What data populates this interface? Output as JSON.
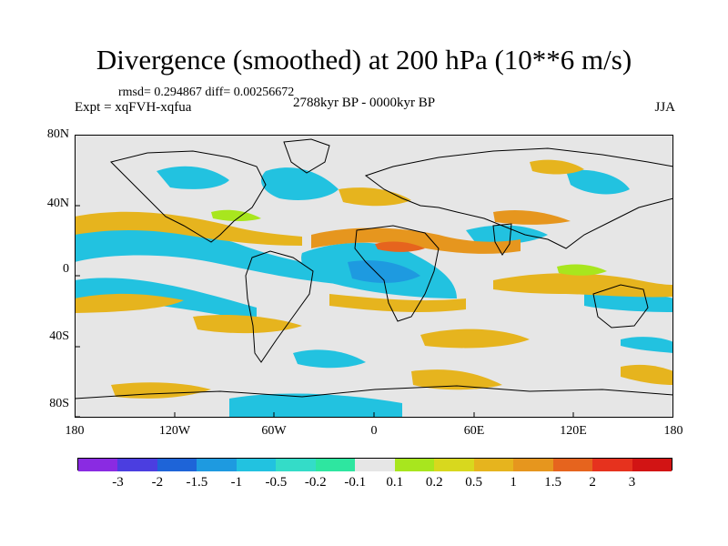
{
  "title": "Divergence (smoothed) at 200 hPa (10**6 m/s)",
  "stats_line": "rmsd= 0.294867 diff= 0.00256672",
  "experiment": "Expt = xqFVH-xqfua",
  "period": "2788kyr BP - 0000kyr BP",
  "season": "JJA",
  "lat_ticks": [
    "80N",
    "40N",
    "0",
    "40S",
    "80S"
  ],
  "lon_ticks": [
    "180",
    "120W",
    "60W",
    "0",
    "60E",
    "120E",
    "180"
  ],
  "colorbar": {
    "labels": [
      "-3",
      "-2",
      "-1.5",
      "-1",
      "-0.5",
      "-0.2",
      "-0.1",
      "0.1",
      "0.2",
      "0.5",
      "1",
      "1.5",
      "2",
      "3"
    ],
    "colors": [
      "#8a2be2",
      "#4b3ee0",
      "#1e64d8",
      "#1e9ae0",
      "#22c2e0",
      "#34dcc8",
      "#2ee6a0",
      "#e6e6e6",
      "#a8e61e",
      "#d8d81e",
      "#e6b41e",
      "#e6961e",
      "#e6641e",
      "#e6321e",
      "#d21414"
    ]
  },
  "palette": {
    "neutral": "#e6e6e6",
    "neg1": "#22c2e0",
    "neg2": "#1e9ae0",
    "neg3": "#1e64d8",
    "pos0": "#a8e61e",
    "pos1": "#e6b41e",
    "pos2": "#e6961e",
    "pos3": "#e6641e"
  }
}
